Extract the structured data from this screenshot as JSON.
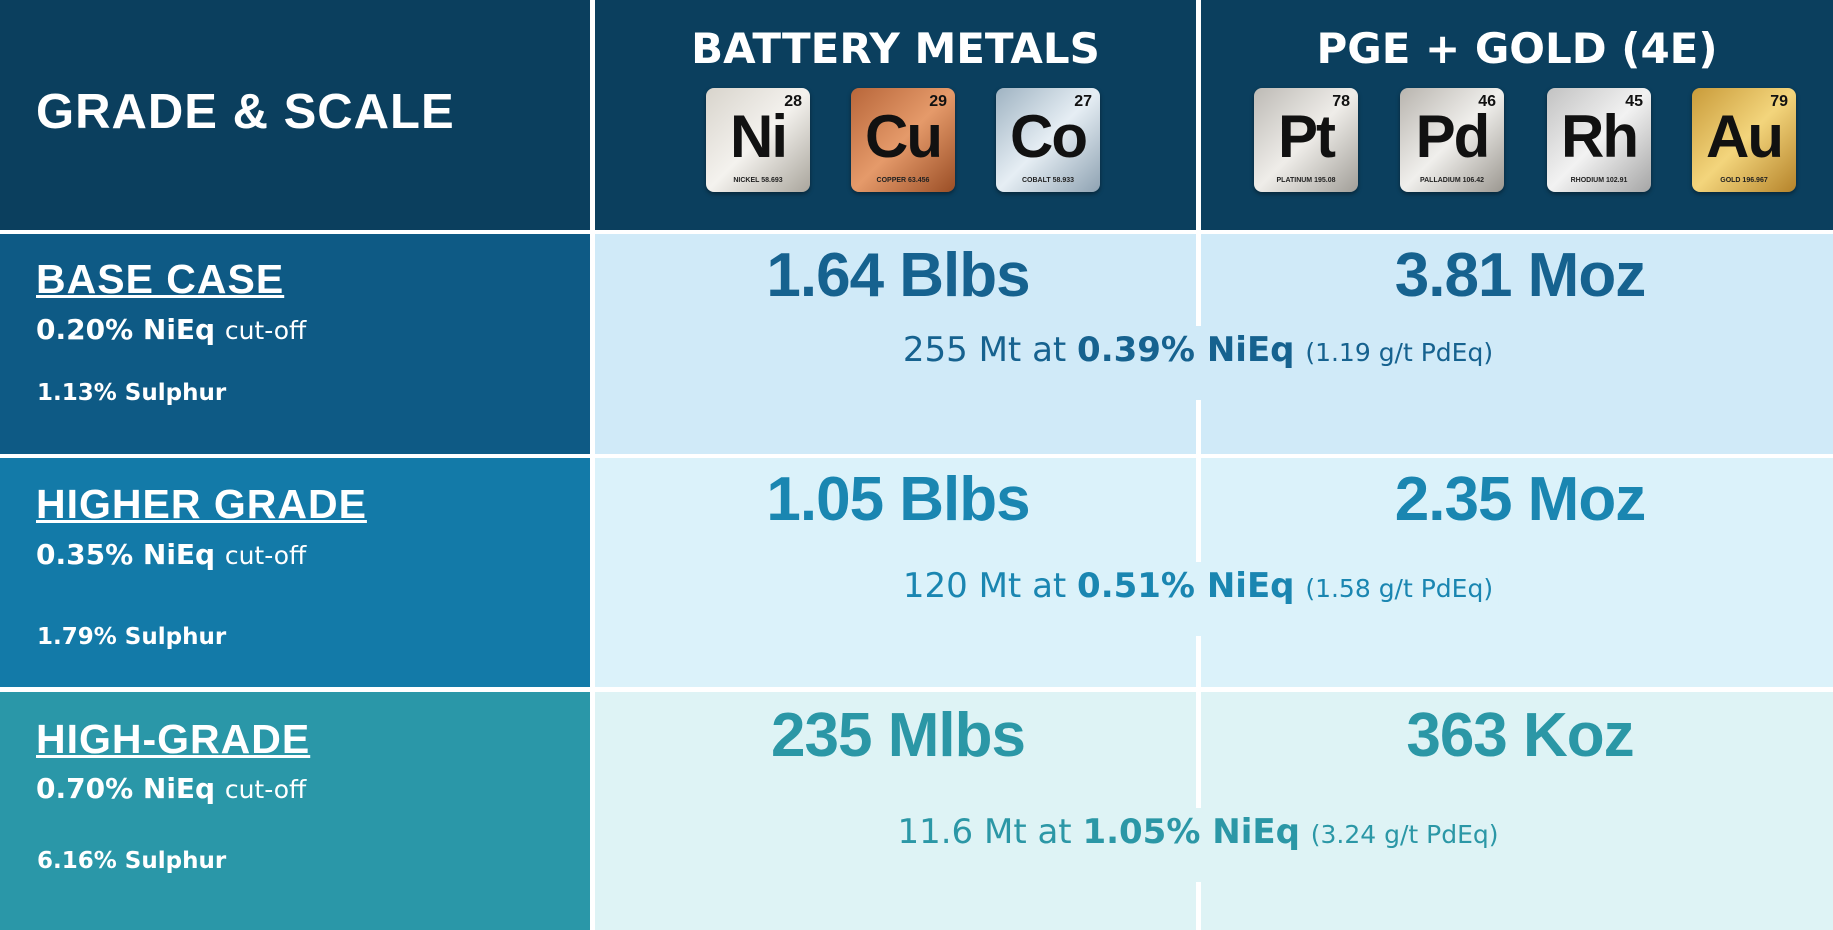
{
  "header": {
    "title": "GRADE & SCALE",
    "groups": [
      {
        "title": "BATTERY METALS",
        "elements": [
          {
            "symbol": "Ni",
            "number": "28",
            "caption": "NICKEL 58.693"
          },
          {
            "symbol": "Cu",
            "number": "29",
            "caption": "COPPER 63.456"
          },
          {
            "symbol": "Co",
            "number": "27",
            "caption": "COBALT 58.933"
          }
        ]
      },
      {
        "title": "PGE + GOLD (4E)",
        "elements": [
          {
            "symbol": "Pt",
            "number": "78",
            "caption": "PLATINUM 195.08"
          },
          {
            "symbol": "Pd",
            "number": "46",
            "caption": "PALLADIUM 106.42"
          },
          {
            "symbol": "Rh",
            "number": "45",
            "caption": "RHODIUM 102.91"
          },
          {
            "symbol": "Au",
            "number": "79",
            "caption": "GOLD 196.967"
          }
        ]
      }
    ]
  },
  "rows": [
    {
      "name": "BASE CASE",
      "cutoff": "0.20% NiEq",
      "cutoff_suffix": "cut-off",
      "sulphur": "1.13% Sulphur",
      "battery": "1.64 Blbs",
      "pge": "3.81 Moz",
      "tonnage": "255 Mt at",
      "grade": "0.39% NiEq",
      "pdeq": "(1.19 g/t PdEq)"
    },
    {
      "name": "HIGHER GRADE",
      "cutoff": "0.35% NiEq",
      "cutoff_suffix": "cut-off",
      "sulphur": "1.79% Sulphur",
      "battery": "1.05 Blbs",
      "pge": "2.35 Moz",
      "tonnage": "120 Mt at",
      "grade": "0.51% NiEq",
      "pdeq": "(1.58 g/t PdEq)"
    },
    {
      "name": "HIGH-GRADE",
      "cutoff": "0.70% NiEq",
      "cutoff_suffix": "cut-off",
      "sulphur": "6.16% Sulphur",
      "battery": "235 Mlbs",
      "pge": "363 Koz",
      "tonnage": "11.6 Mt at",
      "grade": "1.05% NiEq",
      "pdeq": "(3.24 g/t PdEq)"
    }
  ]
}
